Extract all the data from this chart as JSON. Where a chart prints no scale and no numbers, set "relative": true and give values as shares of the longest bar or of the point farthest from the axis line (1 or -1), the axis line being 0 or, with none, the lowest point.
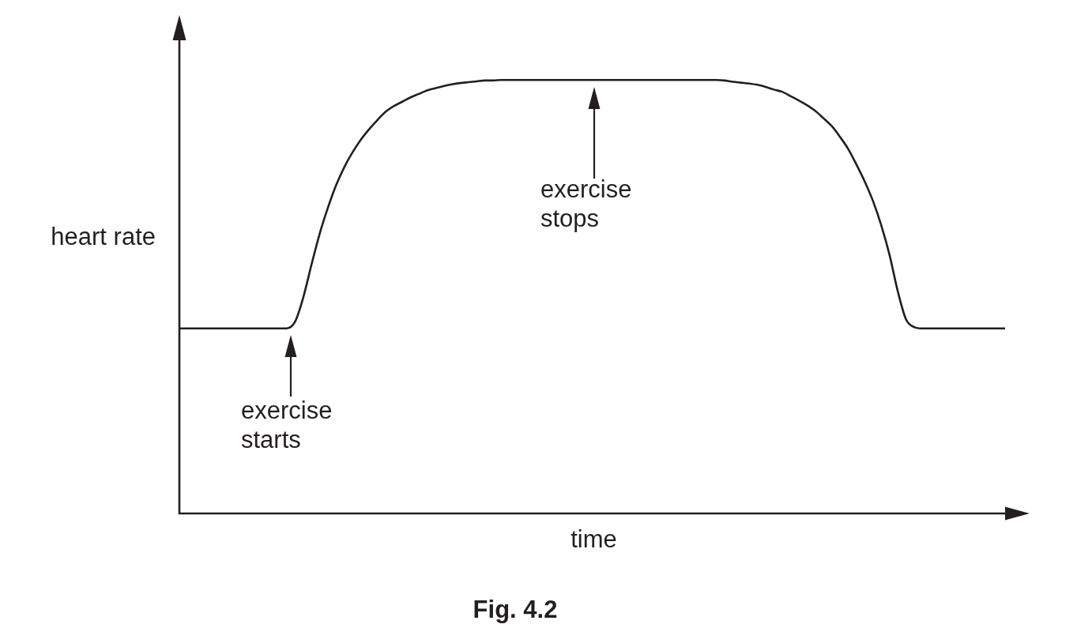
{
  "chart_data": {
    "type": "line",
    "title": "Fig. 4.2",
    "xlabel": "time",
    "ylabel": "heart rate",
    "annotations": [
      "exercise starts",
      "exercise stops"
    ],
    "relative": true,
    "marker": "none",
    "color": "#231f20",
    "categories": [
      null,
      null,
      null,
      null,
      null,
      null,
      null,
      null,
      null,
      null,
      null,
      null,
      null,
      null,
      null,
      null,
      null,
      null,
      null,
      null,
      null,
      null,
      null,
      null,
      null,
      null,
      null,
      null,
      null,
      null,
      null,
      null,
      null,
      null,
      null,
      null,
      null,
      null,
      null,
      null,
      null,
      null,
      null,
      null,
      null,
      null,
      null,
      null,
      null,
      null,
      null,
      null,
      null,
      null,
      null,
      null,
      null,
      null,
      null,
      null,
      null,
      null,
      null,
      null,
      null,
      null,
      null,
      null,
      null,
      null,
      null,
      null,
      null,
      null,
      null,
      null,
      null,
      null,
      null,
      null,
      null,
      null,
      null,
      null,
      null,
      null,
      null,
      null,
      null,
      null,
      null,
      null,
      null,
      null,
      null,
      null,
      null,
      null,
      null,
      null,
      null
    ],
    "values": [
      0.427,
      0.427,
      0.427,
      0.427,
      0.427,
      0.427,
      0.427,
      0.427,
      0.427,
      0.427,
      0.427,
      0.427,
      0.427,
      0.427,
      0.442,
      0.498,
      0.574,
      0.646,
      0.706,
      0.758,
      0.8,
      0.834,
      0.863,
      0.887,
      0.908,
      0.927,
      0.94,
      0.95,
      0.96,
      0.968,
      0.976,
      0.981,
      0.986,
      0.99,
      0.993,
      0.995,
      0.997,
      0.999,
      0.999,
      1,
      1,
      1,
      1,
      1,
      1,
      1,
      1,
      1,
      1,
      1,
      1,
      1,
      1,
      1,
      1,
      1,
      1,
      1,
      1,
      1,
      1,
      1,
      1,
      1,
      1,
      1,
      0.999,
      0.996,
      0.994,
      0.992,
      0.989,
      0.984,
      0.978,
      0.973,
      0.963,
      0.953,
      0.942,
      0.929,
      0.912,
      0.894,
      0.869,
      0.841,
      0.805,
      0.766,
      0.721,
      0.665,
      0.597,
      0.513,
      0.448,
      0.43,
      0.427,
      0.427,
      0.427,
      0.427,
      0.427,
      0.427,
      0.427,
      0.427,
      0.427,
      0.427,
      0.427
    ]
  }
}
